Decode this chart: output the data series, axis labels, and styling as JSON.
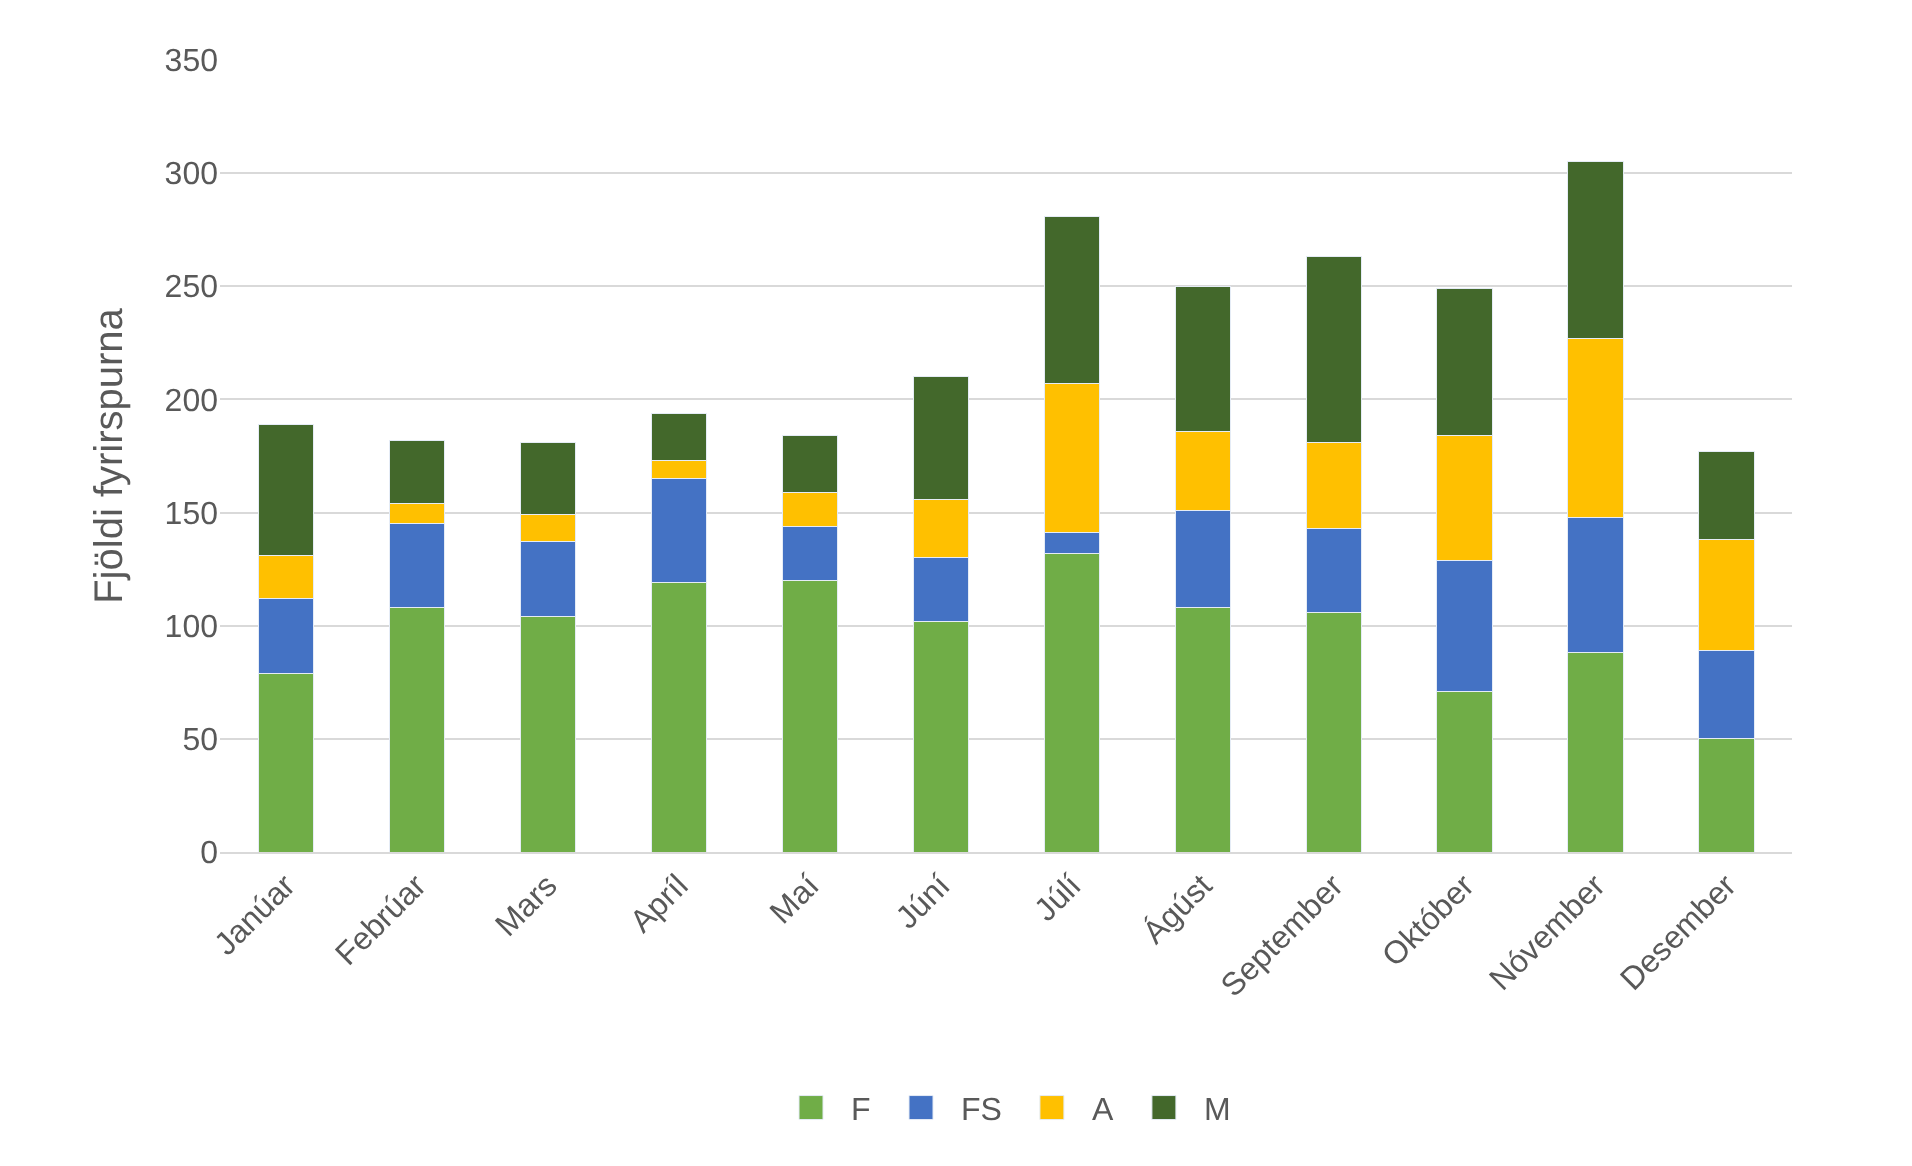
{
  "chart_data": {
    "type": "bar",
    "stacked": true,
    "ylabel": "Fjöldi fyrirspurna",
    "categories": [
      "Janúar",
      "Febrúar",
      "Mars",
      "Apríl",
      "Maí",
      "Júní",
      "Júlí",
      "Ágúst",
      "September",
      "Október",
      "Nóvember",
      "Desember"
    ],
    "series": [
      {
        "name": "F",
        "color": "#70ad47",
        "values": [
          79,
          108,
          104,
          119,
          120,
          102,
          132,
          108,
          106,
          71,
          88,
          50
        ]
      },
      {
        "name": "FS",
        "color": "#4472c4",
        "values": [
          33,
          37,
          33,
          46,
          24,
          28,
          9,
          43,
          37,
          58,
          60,
          39
        ]
      },
      {
        "name": "A",
        "color": "#ffc000",
        "values": [
          19,
          9,
          12,
          8,
          15,
          26,
          66,
          35,
          38,
          55,
          79,
          49
        ]
      },
      {
        "name": "M",
        "color": "#43682b",
        "values": [
          58,
          28,
          32,
          21,
          25,
          54,
          74,
          64,
          82,
          65,
          78,
          39
        ]
      }
    ],
    "ylim": [
      0,
      350
    ],
    "yticks": [
      0,
      50,
      100,
      150,
      200,
      250,
      300,
      350
    ],
    "grid": "y",
    "legend": "bottom"
  }
}
